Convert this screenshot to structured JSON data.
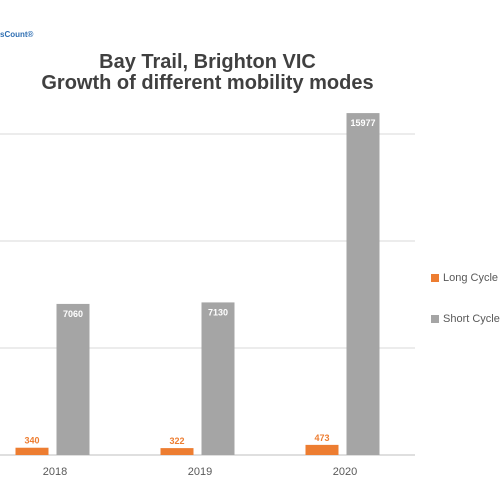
{
  "logo_text": "sCount®",
  "chart_data": {
    "type": "bar",
    "title_line1": "Bay Trail, Brighton VIC",
    "title_line2": "Growth of different mobility modes",
    "categories": [
      "2018",
      "2019",
      "2020"
    ],
    "series": [
      {
        "name": "Long Cycle",
        "values": [
          340,
          322,
          473
        ],
        "color": "#ed7d31"
      },
      {
        "name": "Short Cycle",
        "values": [
          7060,
          7130,
          15977
        ],
        "color": "#a5a5a5"
      }
    ],
    "ylim": [
      0,
      15000
    ],
    "yticks": [
      0,
      5000,
      10000,
      15000
    ],
    "grid": true,
    "legend_position": "right"
  }
}
